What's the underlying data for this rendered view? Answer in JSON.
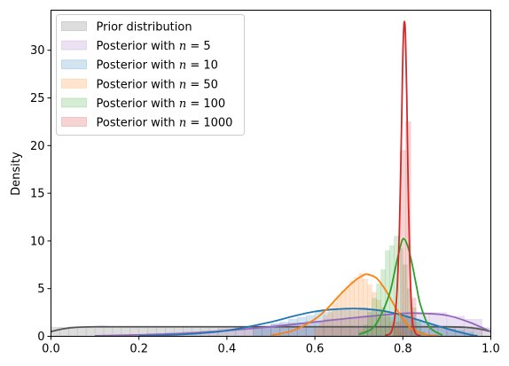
{
  "chart_data": {
    "type": "area",
    "xlabel": "",
    "ylabel": "Density",
    "xlim": [
      0.0,
      1.0
    ],
    "ylim": [
      0,
      34.2
    ],
    "xticks": [
      "0.0",
      "0.2",
      "0.4",
      "0.6",
      "0.8",
      "1.0"
    ],
    "xtick_values": [
      0.0,
      0.2,
      0.4,
      0.6,
      0.8,
      1.0
    ],
    "yticks": [
      "0",
      "5",
      "10",
      "15",
      "20",
      "25",
      "30"
    ],
    "ytick_values": [
      0,
      5,
      10,
      15,
      20,
      25,
      30
    ],
    "grid": false,
    "legend_position": "top-left",
    "series": [
      {
        "name": "Prior distribution",
        "legend_prefix": "Prior distribution",
        "legend_n": "",
        "color": "#555555",
        "hist": {
          "start": 0.0,
          "width": 0.02,
          "values": [
            0.95,
            0.95,
            1.0,
            0.9,
            1.0,
            1.05,
            0.95,
            1.0,
            1.0,
            0.95,
            1.05,
            1.0,
            0.95,
            1.0,
            1.0,
            0.95,
            1.05,
            1.0,
            0.95,
            1.0,
            1.0,
            0.95,
            1.05,
            1.0,
            0.95,
            1.0,
            1.0,
            0.95,
            1.05,
            1.0,
            0.95,
            1.0,
            1.0,
            0.95,
            1.05,
            1.0,
            0.95,
            1.0,
            1.0,
            0.95,
            1.05,
            1.0,
            0.95,
            1.0,
            1.0,
            0.95,
            1.05,
            1.0,
            0.95,
            0.9
          ]
        },
        "kde": {
          "x": [
            0.0,
            0.03,
            0.06,
            0.1,
            0.15,
            0.2,
            0.3,
            0.4,
            0.5,
            0.6,
            0.7,
            0.8,
            0.85,
            0.9,
            0.94,
            0.97,
            1.0
          ],
          "y": [
            0.5,
            0.8,
            0.95,
            1.0,
            1.0,
            1.0,
            1.0,
            1.0,
            1.0,
            1.0,
            1.0,
            1.0,
            1.0,
            1.0,
            0.95,
            0.8,
            0.5
          ]
        }
      },
      {
        "name": "Posterior with n = 5",
        "legend_prefix": "Posterior with ",
        "legend_n": "5",
        "color": "#9467bd",
        "hist": {
          "start": 0.1,
          "width": 0.04,
          "values": [
            0.1,
            0.1,
            0.2,
            0.3,
            0.4,
            0.5,
            0.6,
            0.8,
            1.0,
            1.1,
            1.3,
            1.4,
            1.6,
            1.8,
            1.9,
            2.1,
            2.0,
            2.2,
            2.3,
            2.5,
            2.1,
            1.8
          ]
        },
        "kde": {
          "x": [
            0.1,
            0.2,
            0.3,
            0.4,
            0.5,
            0.6,
            0.7,
            0.8,
            0.85,
            0.9,
            0.95,
            1.0
          ],
          "y": [
            0.05,
            0.15,
            0.3,
            0.6,
            1.0,
            1.5,
            2.0,
            2.4,
            2.4,
            2.2,
            1.5,
            0.5
          ]
        }
      },
      {
        "name": "Posterior with n = 10",
        "legend_prefix": "Posterior with ",
        "legend_n": "10",
        "color": "#1f77b4",
        "hist": {
          "start": 0.46,
          "width": 0.02,
          "values": [
            0.8,
            1.0,
            1.3,
            1.5,
            1.8,
            2.0,
            2.2,
            2.6,
            2.5,
            2.8,
            2.9,
            2.7,
            3.0,
            2.8,
            2.6,
            2.5,
            2.2,
            2.0,
            1.8,
            1.5,
            1.2,
            1.0,
            0.8,
            0.6,
            0.4
          ]
        },
        "kde": {
          "x": [
            0.2,
            0.3,
            0.4,
            0.5,
            0.55,
            0.6,
            0.65,
            0.7,
            0.75,
            0.8,
            0.85,
            0.9,
            0.95,
            0.97
          ],
          "y": [
            0.05,
            0.2,
            0.6,
            1.5,
            2.1,
            2.6,
            2.85,
            2.9,
            2.7,
            2.2,
            1.5,
            0.8,
            0.2,
            0.05
          ]
        }
      },
      {
        "name": "Posterior with n = 50",
        "legend_prefix": "Posterior with ",
        "legend_n": "50",
        "color": "#ff7f0e",
        "hist": {
          "start": 0.6,
          "width": 0.01,
          "values": [
            0.8,
            1.5,
            2.2,
            3.0,
            3.5,
            4.2,
            4.8,
            5.2,
            5.8,
            6.2,
            6.6,
            6.0,
            5.4,
            4.6,
            3.8,
            3.0,
            2.2,
            1.5,
            1.0,
            0.5
          ]
        },
        "kde": {
          "x": [
            0.5,
            0.55,
            0.6,
            0.63,
            0.66,
            0.69,
            0.71,
            0.72,
            0.74,
            0.76,
            0.78,
            0.8,
            0.82,
            0.85,
            0.88
          ],
          "y": [
            0.1,
            0.6,
            1.8,
            3.0,
            4.5,
            5.8,
            6.4,
            6.5,
            6.1,
            4.9,
            3.3,
            1.8,
            0.8,
            0.2,
            0.05
          ]
        }
      },
      {
        "name": "Posterior with n = 100",
        "legend_prefix": "Posterior with ",
        "legend_n": "100",
        "color": "#2ca02c",
        "hist": {
          "start": 0.7,
          "width": 0.01,
          "values": [
            0.5,
            1.2,
            2.5,
            4.0,
            5.5,
            7.0,
            9.0,
            9.5,
            10.5,
            9.2,
            7.5,
            5.0,
            3.0,
            1.5,
            0.5
          ]
        },
        "kde": {
          "x": [
            0.7,
            0.73,
            0.75,
            0.77,
            0.78,
            0.79,
            0.8,
            0.81,
            0.82,
            0.83,
            0.84,
            0.86,
            0.89
          ],
          "y": [
            0.2,
            0.8,
            2.2,
            4.5,
            6.5,
            8.6,
            10.2,
            9.6,
            7.8,
            5.5,
            3.3,
            1.0,
            0.1
          ]
        }
      },
      {
        "name": "Posterior with n = 1000",
        "legend_prefix": "Posterior with ",
        "legend_n": "1000",
        "color": "#d62728",
        "hist": {
          "start": 0.782,
          "width": 0.012,
          "values": [
            1.5,
            19.5,
            22.5,
            4.0
          ]
        },
        "kde": {
          "x": [
            0.76,
            0.775,
            0.785,
            0.792,
            0.797,
            0.8,
            0.803,
            0.806,
            0.809,
            0.812,
            0.816,
            0.821,
            0.828,
            0.84
          ],
          "y": [
            0.1,
            0.6,
            3.5,
            11.0,
            22.0,
            29.5,
            32.9,
            31.5,
            25.0,
            16.0,
            7.5,
            2.0,
            0.4,
            0.05
          ]
        }
      }
    ]
  }
}
